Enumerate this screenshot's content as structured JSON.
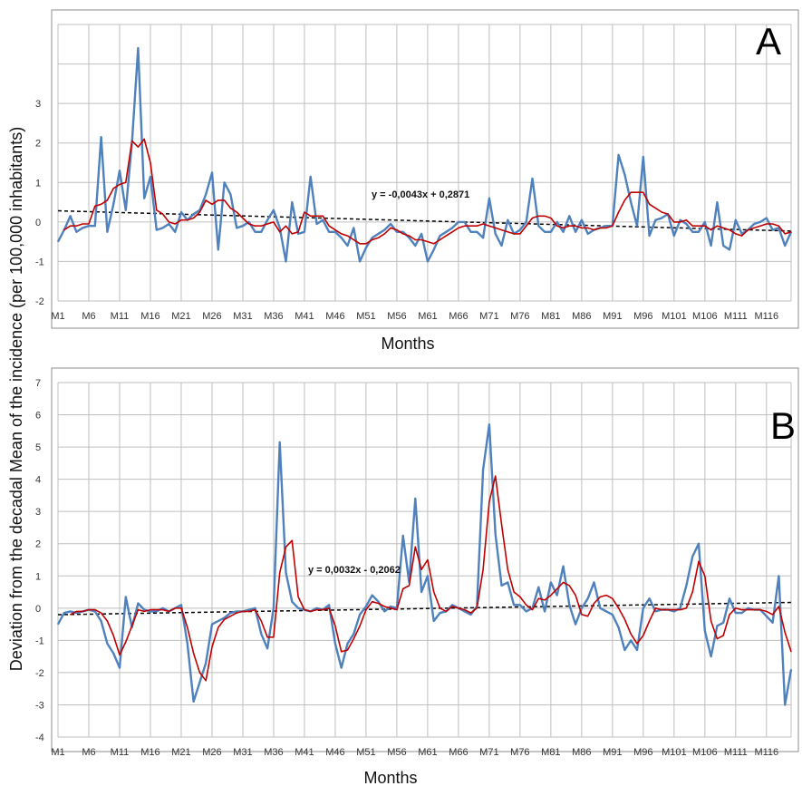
{
  "figure": {
    "ylabel": "Deviation from the decadal Mean of the incidence (per 100,000 inhabitants)"
  },
  "colors": {
    "observed": "#4f81bd",
    "moving_average": "#c00000",
    "trend": "#000000",
    "grid": "#bfbfbf"
  },
  "chart_data": [
    {
      "type": "line",
      "panel_label": "A",
      "xlabel": "Months",
      "ylabel": "",
      "ylim": [
        -2,
        5
      ],
      "yticks": [
        -2,
        -1,
        0,
        1,
        2,
        3
      ],
      "grid": true,
      "x_tick_labels": [
        "M1",
        "M6",
        "M11",
        "M16",
        "M21",
        "M26",
        "M31",
        "M36",
        "M41",
        "M46",
        "M51",
        "M56",
        "M61",
        "M66",
        "M71",
        "M76",
        "M81",
        "M86",
        "M91",
        "M96",
        "M101",
        "M106",
        "M111",
        "M116"
      ],
      "trendline": {
        "label": "y = -0,0043x + 0,2871",
        "slope": -0.0043,
        "intercept": 0.2871
      },
      "series": [
        {
          "values": [
            -0.5,
            -0.2,
            0.15,
            -0.25,
            -0.15,
            -0.1,
            -0.1,
            2.15,
            -0.25,
            0.45,
            1.3,
            0.3,
            2.0,
            4.4,
            0.6,
            1.15,
            -0.2,
            -0.15,
            -0.05,
            -0.25,
            0.25,
            0.05,
            0.2,
            0.3,
            0.7,
            1.25,
            -0.7,
            1.0,
            0.7,
            -0.15,
            -0.1,
            0.0,
            -0.25,
            -0.25,
            0.05,
            0.3,
            -0.15,
            -1.0,
            0.5,
            -0.3,
            -0.25,
            1.15,
            -0.05,
            0.05,
            -0.25,
            -0.25,
            -0.4,
            -0.6,
            -0.15,
            -1.0,
            -0.65,
            -0.4,
            -0.3,
            -0.2,
            -0.05,
            -0.25,
            -0.25,
            -0.4,
            -0.6,
            -0.3,
            -1.0,
            -0.7,
            -0.35,
            -0.25,
            -0.15,
            0.0,
            0.0,
            -0.25,
            -0.25,
            -0.4,
            0.6,
            -0.3,
            -0.6,
            0.05,
            -0.3,
            -0.2,
            0.0,
            1.1,
            -0.1,
            -0.25,
            -0.25,
            0.0,
            -0.25,
            0.15,
            -0.25,
            0.05,
            -0.3,
            -0.2,
            -0.15,
            -0.1,
            -0.1,
            1.7,
            1.2,
            0.5,
            -0.1,
            1.65,
            -0.35,
            0.05,
            0.1,
            0.2,
            -0.35,
            0.05,
            -0.05,
            -0.25,
            -0.25,
            0.0,
            -0.6,
            0.5,
            -0.6,
            -0.7,
            0.05,
            -0.3,
            -0.2,
            -0.05,
            0.0,
            0.1,
            -0.2,
            -0.15,
            -0.6,
            -0.25
          ]
        },
        {
          "values": [
            null,
            -0.2,
            -0.1,
            -0.1,
            -0.05,
            -0.05,
            0.4,
            0.45,
            0.55,
            0.85,
            0.95,
            1.0,
            2.05,
            1.9,
            2.1,
            1.5,
            0.3,
            0.2,
            0.0,
            -0.05,
            0.05,
            0.05,
            0.1,
            0.25,
            0.55,
            0.45,
            0.55,
            0.55,
            0.35,
            0.25,
            0.1,
            -0.05,
            -0.1,
            -0.1,
            -0.05,
            0.0,
            -0.25,
            -0.1,
            -0.3,
            -0.25,
            0.25,
            0.15,
            0.15,
            0.15,
            -0.1,
            -0.2,
            -0.3,
            -0.35,
            -0.45,
            -0.55,
            -0.55,
            -0.45,
            -0.4,
            -0.3,
            -0.15,
            -0.2,
            -0.3,
            -0.35,
            -0.45,
            -0.45,
            -0.5,
            -0.55,
            -0.45,
            -0.35,
            -0.25,
            -0.15,
            -0.1,
            -0.1,
            -0.1,
            -0.05,
            -0.1,
            -0.15,
            -0.2,
            -0.25,
            -0.3,
            -0.3,
            -0.1,
            0.1,
            0.15,
            0.15,
            0.1,
            -0.1,
            -0.15,
            -0.1,
            -0.1,
            -0.15,
            -0.15,
            -0.2,
            -0.15,
            -0.15,
            -0.1,
            0.25,
            0.55,
            0.75,
            0.75,
            0.75,
            0.45,
            0.35,
            0.25,
            0.2,
            0.0,
            0.0,
            0.05,
            -0.1,
            -0.1,
            -0.1,
            -0.2,
            -0.1,
            -0.15,
            -0.2,
            -0.3,
            -0.35,
            -0.2,
            -0.15,
            -0.1,
            -0.05,
            -0.05,
            -0.1,
            -0.3,
            -0.25
          ]
        }
      ]
    },
    {
      "type": "line",
      "panel_label": "B",
      "xlabel": "Months",
      "ylabel": "",
      "ylim": [
        -4,
        7
      ],
      "yticks": [
        -4,
        -3,
        -2,
        -1,
        0,
        1,
        2,
        3,
        4,
        5,
        6,
        7
      ],
      "grid": true,
      "x_tick_labels": [
        "M1",
        "M6",
        "M11",
        "M16",
        "M21",
        "M26",
        "M31",
        "M36",
        "M41",
        "M46",
        "M51",
        "M56",
        "M61",
        "M66",
        "M71",
        "M76",
        "M81",
        "M86",
        "M91",
        "M96",
        "M101",
        "M106",
        "M111",
        "M116"
      ],
      "trendline": {
        "label": "y = 0,0032x - 0,2062",
        "slope": 0.0032,
        "intercept": -0.2062
      },
      "series": [
        {
          "values": [
            -0.5,
            -0.15,
            -0.1,
            -0.15,
            -0.1,
            -0.05,
            -0.1,
            -0.4,
            -1.1,
            -1.4,
            -1.85,
            0.35,
            -0.6,
            0.15,
            -0.05,
            -0.1,
            -0.1,
            0.0,
            -0.1,
            0.0,
            0.1,
            -1.1,
            -2.9,
            -2.3,
            -1.7,
            -0.5,
            -0.4,
            -0.3,
            -0.15,
            -0.1,
            -0.1,
            -0.05,
            0.0,
            -0.8,
            -1.25,
            0.0,
            5.15,
            1.1,
            0.2,
            0.0,
            -0.05,
            -0.1,
            0.0,
            -0.05,
            0.1,
            -1.1,
            -1.85,
            -1.1,
            -0.8,
            -0.2,
            0.05,
            0.4,
            0.2,
            -0.1,
            0.05,
            0.0,
            2.25,
            0.8,
            3.4,
            0.5,
            1.0,
            -0.4,
            -0.15,
            -0.1,
            0.1,
            0.0,
            -0.1,
            -0.2,
            0.05,
            4.3,
            5.7,
            2.3,
            0.7,
            0.8,
            0.1,
            0.1,
            -0.1,
            0.0,
            0.65,
            -0.1,
            0.8,
            0.4,
            1.3,
            0.1,
            -0.5,
            0.0,
            0.3,
            0.8,
            0.0,
            -0.1,
            -0.2,
            -0.6,
            -1.3,
            -1.0,
            -1.3,
            0.0,
            0.3,
            -0.1,
            -0.05,
            -0.05,
            -0.1,
            0.0,
            0.7,
            1.6,
            2.0,
            -0.7,
            -1.5,
            -0.55,
            -0.45,
            0.3,
            -0.15,
            -0.15,
            0.0,
            -0.05,
            -0.05,
            -0.25,
            -0.45,
            1.0,
            -3.0,
            -1.9
          ]
        },
        {
          "values": [
            null,
            null,
            -0.2,
            -0.1,
            -0.1,
            -0.05,
            -0.05,
            -0.15,
            -0.4,
            -0.85,
            -1.45,
            -1.05,
            -0.55,
            -0.05,
            -0.1,
            -0.05,
            -0.05,
            -0.05,
            -0.1,
            0.0,
            0.0,
            -0.6,
            -1.4,
            -2.0,
            -2.25,
            -1.2,
            -0.6,
            -0.35,
            -0.25,
            -0.15,
            -0.1,
            -0.1,
            -0.05,
            -0.4,
            -0.9,
            -0.9,
            1.1,
            1.9,
            2.1,
            0.35,
            -0.05,
            -0.1,
            -0.05,
            -0.05,
            0.0,
            -0.55,
            -1.35,
            -1.3,
            -0.95,
            -0.55,
            -0.05,
            0.2,
            0.15,
            0.05,
            0.0,
            -0.05,
            0.6,
            0.7,
            1.9,
            1.2,
            1.5,
            0.5,
            0.0,
            -0.1,
            0.05,
            0.0,
            -0.05,
            -0.15,
            0.0,
            1.2,
            3.3,
            4.1,
            2.6,
            1.2,
            0.5,
            0.35,
            0.1,
            -0.05,
            0.3,
            0.25,
            0.4,
            0.6,
            0.8,
            0.7,
            0.4,
            -0.2,
            -0.25,
            0.15,
            0.35,
            0.4,
            0.3,
            0.0,
            -0.35,
            -0.8,
            -1.1,
            -0.85,
            -0.4,
            0.0,
            -0.05,
            -0.05,
            -0.05,
            -0.05,
            0.0,
            0.5,
            1.45,
            1.0,
            -0.4,
            -0.95,
            -0.85,
            -0.2,
            0.0,
            -0.05,
            -0.05,
            -0.05,
            -0.05,
            -0.1,
            -0.2,
            0.05,
            -0.75,
            -1.35
          ]
        }
      ]
    }
  ]
}
